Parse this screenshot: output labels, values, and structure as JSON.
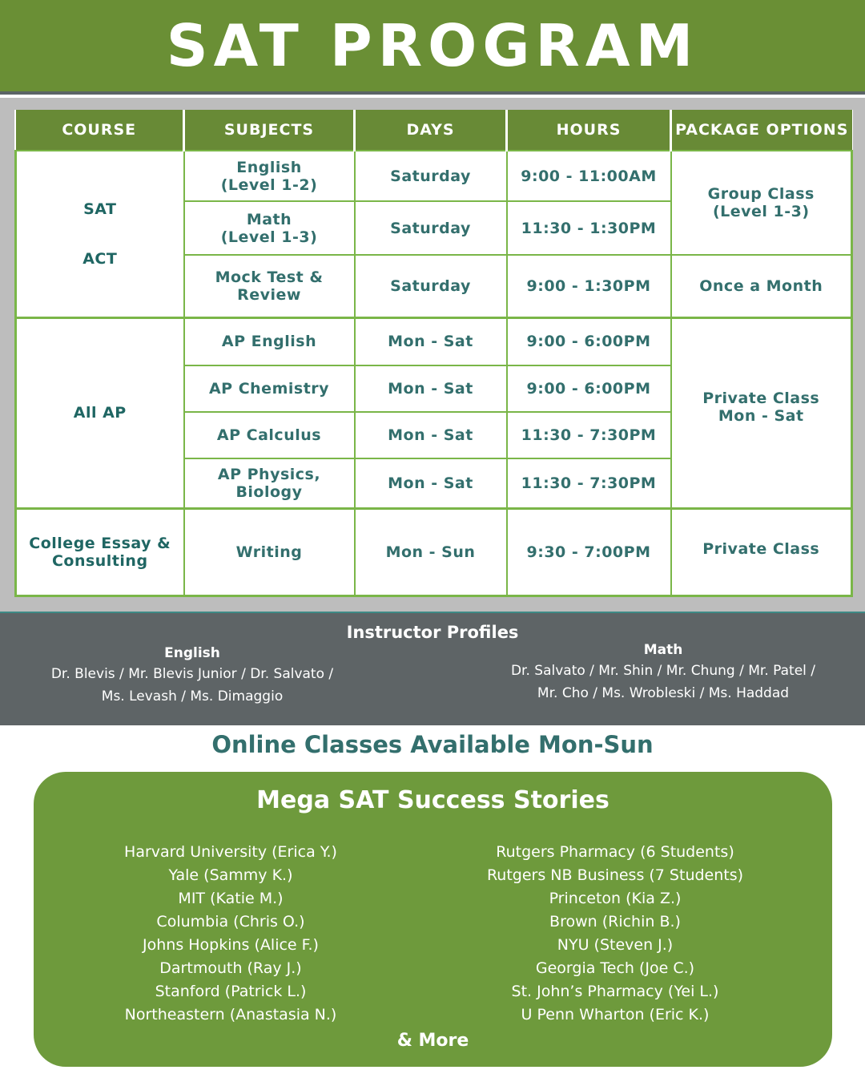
{
  "title": "SAT PROGRAM",
  "table": {
    "headers": [
      "COURSE",
      "SUBJECTS",
      "DAYS",
      "HOURS",
      "PACKAGE OPTIONS"
    ],
    "sat": {
      "course_line1": "SAT",
      "course_line2": "ACT",
      "rows": [
        {
          "subject": "English\n(Level 1-2)",
          "days": "Saturday",
          "hours": "9:00 - 11:00AM"
        },
        {
          "subject": "Math\n(Level 1-3)",
          "days": "Saturday",
          "hours": "11:30 - 1:30PM"
        },
        {
          "subject": "Mock Test &\nReview",
          "days": "Saturday",
          "hours": "9:00 - 1:30PM"
        }
      ],
      "package1": "Group Class\n(Level 1-3)",
      "package2": "Once a Month"
    },
    "ap": {
      "course": "All AP",
      "rows": [
        {
          "subject": "AP English",
          "days": "Mon - Sat",
          "hours": "9:00 - 6:00PM"
        },
        {
          "subject": "AP Chemistry",
          "days": "Mon - Sat",
          "hours": "9:00 - 6:00PM"
        },
        {
          "subject": "AP Calculus",
          "days": "Mon - Sat",
          "hours": "11:30 - 7:30PM"
        },
        {
          "subject": "AP Physics, Biology",
          "days": "Mon - Sat",
          "hours": "11:30 - 7:30PM"
        }
      ],
      "package": "Private Class\nMon - Sat"
    },
    "essay": {
      "course": "College Essay &\nConsulting",
      "subject": "Writing",
      "days": "Mon - Sun",
      "hours": "9:30 - 7:00PM",
      "package": "Private Class"
    }
  },
  "instructors": {
    "title": "Instructor Profiles",
    "english": {
      "heading": "English",
      "line1": "Dr. Blevis / Mr. Blevis Junior / Dr. Salvato /",
      "line2": "Ms. Levash / Ms. Dimaggio"
    },
    "math": {
      "heading": "Math",
      "line1": "Dr. Salvato / Mr. Shin / Mr. Chung / Mr. Patel /",
      "line2": "Mr. Cho / Ms. Wrobleski / Ms. Haddad"
    }
  },
  "online": "Online Classes Available Mon-Sun",
  "success": {
    "title": "Mega SAT Success Stories",
    "left": [
      "Harvard University (Erica Y.)",
      "Yale (Sammy K.)",
      "MIT (Katie M.)",
      "Columbia (Chris O.)",
      "Johns Hopkins (Alice F.)",
      "Dartmouth (Ray J.)",
      "Stanford (Patrick L.)",
      "Northeastern (Anastasia N.)"
    ],
    "right": [
      "Rutgers Pharmacy (6 Students)",
      "Rutgers NB Business (7 Students)",
      "Princeton (Kia Z.)",
      "Brown (Richin B.)",
      "NYU (Steven J.)",
      "Georgia Tech (Joe C.)",
      "St. John’s Pharmacy (Yei L.)",
      "U Penn Wharton (Eric K.)"
    ],
    "more": "& More"
  },
  "colors": {
    "green": "#6a8f35",
    "teal_text": "#336f6d",
    "border": "#7ab648",
    "dark_band": "#5e6466"
  }
}
